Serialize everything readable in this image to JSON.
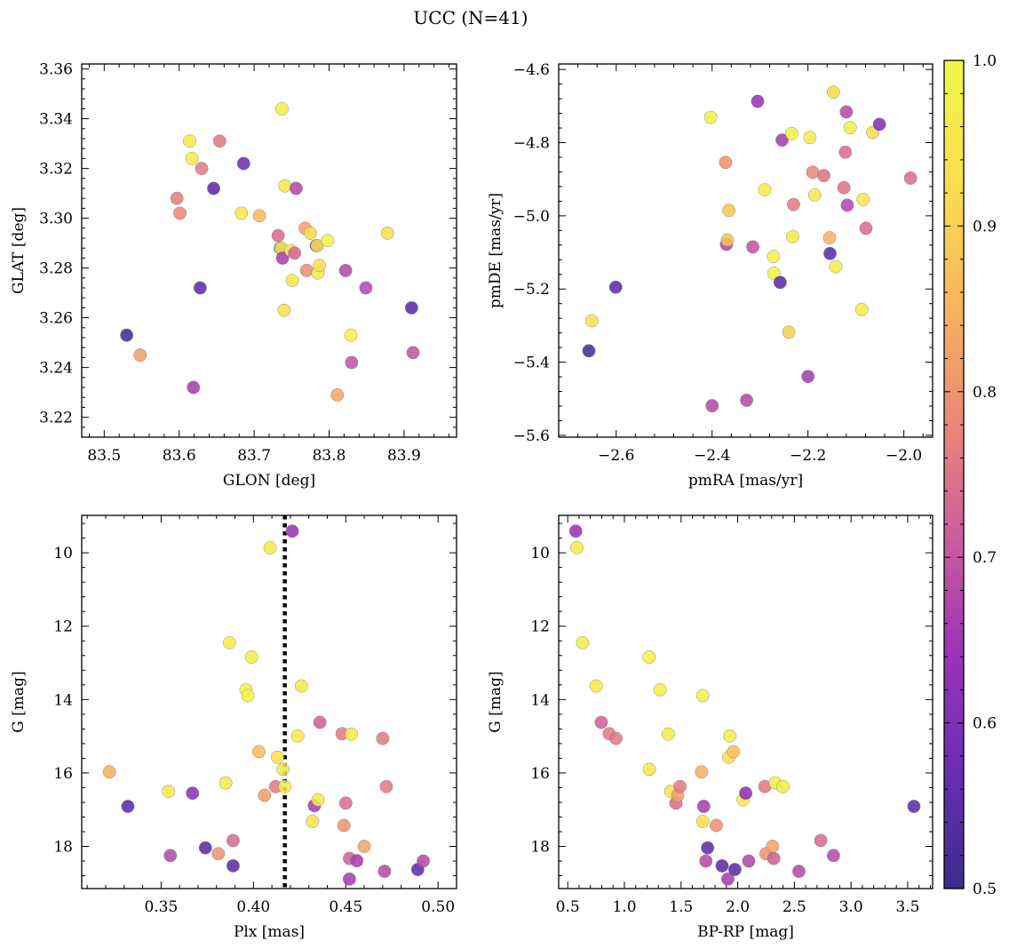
{
  "figure": {
    "title": "UCC (N=41)"
  },
  "colorbar": {
    "range": [
      0.5,
      1.0
    ],
    "tick_labels": [
      "0.5",
      "0.6",
      "0.7",
      "0.8",
      "0.9",
      "1.0"
    ],
    "colormap": "plasma",
    "stops": [
      "#3b2b8e",
      "#6a2fb0",
      "#9c33b8",
      "#cd5f9a",
      "#ec8a77",
      "#f7b75e",
      "#f9e04e",
      "#eef74a"
    ]
  },
  "chart_data": [
    {
      "type": "scatter",
      "xlabel": "GLON [deg]",
      "ylabel": "GLAT [deg]",
      "xlim": [
        83.47,
        83.97
      ],
      "ylim": [
        3.212,
        3.362
      ],
      "xticks": [
        83.5,
        83.6,
        83.7,
        83.8,
        83.9
      ],
      "xtick_labels": [
        "83.5",
        "83.6",
        "83.7",
        "83.8",
        "83.9"
      ],
      "yticks": [
        3.22,
        3.24,
        3.26,
        3.28,
        3.3,
        3.32,
        3.34,
        3.36
      ],
      "ytick_labels": [
        "3.22",
        "3.24",
        "3.26",
        "3.28",
        "3.30",
        "3.32",
        "3.34",
        "3.36"
      ],
      "points": [
        {
          "x": 83.53,
          "y": 3.253,
          "c": 0.52
        },
        {
          "x": 83.548,
          "y": 3.245,
          "c": 0.82
        },
        {
          "x": 83.597,
          "y": 3.308,
          "c": 0.77
        },
        {
          "x": 83.601,
          "y": 3.302,
          "c": 0.78
        },
        {
          "x": 83.614,
          "y": 3.331,
          "c": 0.96
        },
        {
          "x": 83.617,
          "y": 3.324,
          "c": 0.97
        },
        {
          "x": 83.619,
          "y": 3.232,
          "c": 0.66
        },
        {
          "x": 83.628,
          "y": 3.272,
          "c": 0.55
        },
        {
          "x": 83.63,
          "y": 3.32,
          "c": 0.76
        },
        {
          "x": 83.646,
          "y": 3.312,
          "c": 0.55
        },
        {
          "x": 83.654,
          "y": 3.331,
          "c": 0.76
        },
        {
          "x": 83.683,
          "y": 3.302,
          "c": 0.96
        },
        {
          "x": 83.686,
          "y": 3.322,
          "c": 0.58
        },
        {
          "x": 83.707,
          "y": 3.301,
          "c": 0.86
        },
        {
          "x": 83.732,
          "y": 3.293,
          "c": 0.74
        },
        {
          "x": 83.735,
          "y": 3.288,
          "c": 0.55
        },
        {
          "x": 83.736,
          "y": 3.288,
          "c": 0.97
        },
        {
          "x": 83.737,
          "y": 3.344,
          "c": 0.98
        },
        {
          "x": 83.738,
          "y": 3.284,
          "c": 0.66
        },
        {
          "x": 83.74,
          "y": 3.263,
          "c": 0.94
        },
        {
          "x": 83.741,
          "y": 3.313,
          "c": 0.96
        },
        {
          "x": 83.749,
          "y": 3.287,
          "c": 0.95
        },
        {
          "x": 83.751,
          "y": 3.275,
          "c": 0.95
        },
        {
          "x": 83.754,
          "y": 3.286,
          "c": 0.73
        },
        {
          "x": 83.756,
          "y": 3.312,
          "c": 0.68
        },
        {
          "x": 83.768,
          "y": 3.296,
          "c": 0.82
        },
        {
          "x": 83.77,
          "y": 3.279,
          "c": 0.79
        },
        {
          "x": 83.775,
          "y": 3.294,
          "c": 0.92
        },
        {
          "x": 83.783,
          "y": 3.289,
          "c": 0.58
        },
        {
          "x": 83.784,
          "y": 3.289,
          "c": 0.92
        },
        {
          "x": 83.785,
          "y": 3.278,
          "c": 0.97
        },
        {
          "x": 83.787,
          "y": 3.281,
          "c": 0.93
        },
        {
          "x": 83.798,
          "y": 3.291,
          "c": 0.98
        },
        {
          "x": 83.811,
          "y": 3.229,
          "c": 0.83
        },
        {
          "x": 83.822,
          "y": 3.279,
          "c": 0.68
        },
        {
          "x": 83.829,
          "y": 3.253,
          "c": 0.98
        },
        {
          "x": 83.83,
          "y": 3.242,
          "c": 0.7
        },
        {
          "x": 83.849,
          "y": 3.272,
          "c": 0.68
        },
        {
          "x": 83.878,
          "y": 3.294,
          "c": 0.92
        },
        {
          "x": 83.91,
          "y": 3.264,
          "c": 0.55
        },
        {
          "x": 83.912,
          "y": 3.246,
          "c": 0.7
        }
      ]
    },
    {
      "type": "scatter",
      "xlabel": "pmRA [mas/yr]",
      "ylabel": "pmDE [mas/yr]",
      "xlim": [
        -2.72,
        -1.94
      ],
      "ylim": [
        -5.605,
        -4.585
      ],
      "xticks": [
        -2.6,
        -2.4,
        -2.2,
        -2.0
      ],
      "xtick_labels": [
        "−2.6",
        "−2.4",
        "−2.2",
        "−2.0"
      ],
      "yticks": [
        -5.6,
        -5.4,
        -5.2,
        -5.0,
        -4.8,
        -4.6
      ],
      "ytick_labels": [
        "−5.6",
        "−5.4",
        "−5.2",
        "−5.0",
        "−4.8",
        "−4.6"
      ],
      "points": [
        {
          "x": -2.657,
          "y": -5.369,
          "c": 0.52
        },
        {
          "x": -2.651,
          "y": -5.287,
          "c": 0.93
        },
        {
          "x": -2.601,
          "y": -5.195,
          "c": 0.55
        },
        {
          "x": -2.403,
          "y": -4.731,
          "c": 0.98
        },
        {
          "x": -2.4,
          "y": -5.519,
          "c": 0.68
        },
        {
          "x": -2.372,
          "y": -4.854,
          "c": 0.8
        },
        {
          "x": -2.37,
          "y": -5.078,
          "c": 0.68
        },
        {
          "x": -2.368,
          "y": -5.066,
          "c": 0.88
        },
        {
          "x": -2.365,
          "y": -4.985,
          "c": 0.88
        },
        {
          "x": -2.328,
          "y": -5.504,
          "c": 0.68
        },
        {
          "x": -2.315,
          "y": -5.085,
          "c": 0.7
        },
        {
          "x": -2.305,
          "y": -4.687,
          "c": 0.64
        },
        {
          "x": -2.29,
          "y": -4.929,
          "c": 0.97
        },
        {
          "x": -2.272,
          "y": -5.111,
          "c": 0.98
        },
        {
          "x": -2.271,
          "y": -5.157,
          "c": 0.98
        },
        {
          "x": -2.258,
          "y": -5.182,
          "c": 0.55
        },
        {
          "x": -2.254,
          "y": -4.793,
          "c": 0.66
        },
        {
          "x": -2.24,
          "y": -5.318,
          "c": 0.9
        },
        {
          "x": -2.234,
          "y": -4.775,
          "c": 0.98
        },
        {
          "x": -2.232,
          "y": -5.057,
          "c": 0.97
        },
        {
          "x": -2.23,
          "y": -4.969,
          "c": 0.76
        },
        {
          "x": -2.2,
          "y": -5.439,
          "c": 0.66
        },
        {
          "x": -2.196,
          "y": -4.786,
          "c": 0.96
        },
        {
          "x": -2.19,
          "y": -4.881,
          "c": 0.78
        },
        {
          "x": -2.186,
          "y": -4.943,
          "c": 0.97
        },
        {
          "x": -2.167,
          "y": -4.89,
          "c": 0.75
        },
        {
          "x": -2.155,
          "y": -5.06,
          "c": 0.85
        },
        {
          "x": -2.154,
          "y": -5.103,
          "c": 0.55
        },
        {
          "x": -2.147,
          "y": -4.662,
          "c": 0.92
        },
        {
          "x": -2.142,
          "y": -5.139,
          "c": 0.97
        },
        {
          "x": -2.125,
          "y": -4.923,
          "c": 0.75
        },
        {
          "x": -2.122,
          "y": -4.826,
          "c": 0.74
        },
        {
          "x": -2.12,
          "y": -4.716,
          "c": 0.68
        },
        {
          "x": -2.118,
          "y": -4.971,
          "c": 0.68
        },
        {
          "x": -2.112,
          "y": -4.759,
          "c": 0.98
        },
        {
          "x": -2.088,
          "y": -5.256,
          "c": 0.96
        },
        {
          "x": -2.085,
          "y": -4.955,
          "c": 0.96
        },
        {
          "x": -2.079,
          "y": -5.034,
          "c": 0.74
        },
        {
          "x": -2.065,
          "y": -4.772,
          "c": 0.92
        },
        {
          "x": -2.051,
          "y": -4.75,
          "c": 0.6
        },
        {
          "x": -1.986,
          "y": -4.897,
          "c": 0.74
        }
      ]
    },
    {
      "type": "scatter",
      "xlabel": "Plx [mas]",
      "ylabel": "G [mag]",
      "xlim": [
        0.307,
        0.51
      ],
      "ylim": [
        19.15,
        8.98
      ],
      "y_inverted": true,
      "xticks": [
        0.35,
        0.4,
        0.45,
        0.5
      ],
      "xtick_labels": [
        "0.35",
        "0.40",
        "0.45",
        "0.50"
      ],
      "yticks": [
        10,
        12,
        14,
        16,
        18
      ],
      "ytick_labels": [
        "10",
        "12",
        "14",
        "16",
        "18"
      ],
      "reference_line": {
        "x": 0.417,
        "style": "dotted"
      },
      "points": [
        {
          "x": 0.322,
          "y": 15.97,
          "c": 0.85
        },
        {
          "x": 0.332,
          "y": 16.91,
          "c": 0.55
        },
        {
          "x": 0.354,
          "y": 16.5,
          "c": 0.94
        },
        {
          "x": 0.355,
          "y": 18.25,
          "c": 0.68
        },
        {
          "x": 0.367,
          "y": 16.55,
          "c": 0.62
        },
        {
          "x": 0.374,
          "y": 18.04,
          "c": 0.55
        },
        {
          "x": 0.381,
          "y": 18.2,
          "c": 0.8
        },
        {
          "x": 0.385,
          "y": 16.27,
          "c": 0.97
        },
        {
          "x": 0.387,
          "y": 12.45,
          "c": 0.97
        },
        {
          "x": 0.389,
          "y": 17.84,
          "c": 0.74
        },
        {
          "x": 0.389,
          "y": 18.53,
          "c": 0.55
        },
        {
          "x": 0.396,
          "y": 13.73,
          "c": 0.98
        },
        {
          "x": 0.397,
          "y": 13.89,
          "c": 0.98
        },
        {
          "x": 0.399,
          "y": 12.84,
          "c": 0.98
        },
        {
          "x": 0.403,
          "y": 15.42,
          "c": 0.87
        },
        {
          "x": 0.406,
          "y": 16.61,
          "c": 0.82
        },
        {
          "x": 0.409,
          "y": 9.86,
          "c": 0.97
        },
        {
          "x": 0.412,
          "y": 16.37,
          "c": 0.76
        },
        {
          "x": 0.413,
          "y": 15.57,
          "c": 0.93
        },
        {
          "x": 0.416,
          "y": 15.9,
          "c": 0.95
        },
        {
          "x": 0.417,
          "y": 16.37,
          "c": 0.97
        },
        {
          "x": 0.421,
          "y": 9.41,
          "c": 0.64
        },
        {
          "x": 0.424,
          "y": 14.99,
          "c": 0.97
        },
        {
          "x": 0.426,
          "y": 13.63,
          "c": 0.97
        },
        {
          "x": 0.432,
          "y": 17.32,
          "c": 0.93
        },
        {
          "x": 0.433,
          "y": 16.89,
          "c": 0.66
        },
        {
          "x": 0.435,
          "y": 16.73,
          "c": 0.97
        },
        {
          "x": 0.436,
          "y": 14.62,
          "c": 0.72
        },
        {
          "x": 0.448,
          "y": 14.93,
          "c": 0.76
        },
        {
          "x": 0.449,
          "y": 17.43,
          "c": 0.8
        },
        {
          "x": 0.45,
          "y": 16.82,
          "c": 0.74
        },
        {
          "x": 0.452,
          "y": 18.33,
          "c": 0.72
        },
        {
          "x": 0.452,
          "y": 18.89,
          "c": 0.66
        },
        {
          "x": 0.453,
          "y": 14.94,
          "c": 0.97
        },
        {
          "x": 0.456,
          "y": 18.39,
          "c": 0.66
        },
        {
          "x": 0.46,
          "y": 18.0,
          "c": 0.83
        },
        {
          "x": 0.47,
          "y": 15.06,
          "c": 0.76
        },
        {
          "x": 0.471,
          "y": 18.68,
          "c": 0.68
        },
        {
          "x": 0.472,
          "y": 16.37,
          "c": 0.76
        },
        {
          "x": 0.489,
          "y": 18.63,
          "c": 0.55
        },
        {
          "x": 0.492,
          "y": 18.4,
          "c": 0.68
        }
      ]
    },
    {
      "type": "scatter",
      "xlabel": "BP-RP [mag]",
      "ylabel": "G [mag]",
      "xlim": [
        0.42,
        3.72
      ],
      "ylim": [
        19.15,
        8.98
      ],
      "y_inverted": true,
      "xticks": [
        0.5,
        1.0,
        1.5,
        2.0,
        2.5,
        3.0,
        3.5
      ],
      "xtick_labels": [
        "0.5",
        "1.0",
        "1.5",
        "2.0",
        "2.5",
        "3.0",
        "3.5"
      ],
      "yticks": [
        10,
        12,
        14,
        16,
        18
      ],
      "ytick_labels": [
        "10",
        "12",
        "14",
        "16",
        "18"
      ],
      "points": [
        {
          "x": 0.571,
          "y": 9.41,
          "c": 0.64
        },
        {
          "x": 0.581,
          "y": 9.86,
          "c": 0.97
        },
        {
          "x": 0.631,
          "y": 12.45,
          "c": 0.97
        },
        {
          "x": 0.751,
          "y": 13.63,
          "c": 0.97
        },
        {
          "x": 0.796,
          "y": 14.62,
          "c": 0.72
        },
        {
          "x": 0.866,
          "y": 14.93,
          "c": 0.76
        },
        {
          "x": 0.926,
          "y": 15.06,
          "c": 0.76
        },
        {
          "x": 1.218,
          "y": 12.84,
          "c": 0.98
        },
        {
          "x": 1.22,
          "y": 15.9,
          "c": 0.95
        },
        {
          "x": 1.315,
          "y": 13.73,
          "c": 0.98
        },
        {
          "x": 1.387,
          "y": 14.94,
          "c": 0.97
        },
        {
          "x": 1.408,
          "y": 16.5,
          "c": 0.94
        },
        {
          "x": 1.455,
          "y": 16.82,
          "c": 0.74
        },
        {
          "x": 1.47,
          "y": 16.61,
          "c": 0.82
        },
        {
          "x": 1.49,
          "y": 16.37,
          "c": 0.76
        },
        {
          "x": 1.681,
          "y": 15.97,
          "c": 0.85
        },
        {
          "x": 1.691,
          "y": 13.89,
          "c": 0.98
        },
        {
          "x": 1.692,
          "y": 17.32,
          "c": 0.93
        },
        {
          "x": 1.7,
          "y": 16.91,
          "c": 0.66
        },
        {
          "x": 1.719,
          "y": 18.4,
          "c": 0.68
        },
        {
          "x": 1.734,
          "y": 18.04,
          "c": 0.55
        },
        {
          "x": 1.811,
          "y": 17.43,
          "c": 0.8
        },
        {
          "x": 1.862,
          "y": 18.53,
          "c": 0.55
        },
        {
          "x": 1.913,
          "y": 18.89,
          "c": 0.66
        },
        {
          "x": 1.921,
          "y": 15.57,
          "c": 0.93
        },
        {
          "x": 1.931,
          "y": 14.99,
          "c": 0.97
        },
        {
          "x": 1.961,
          "y": 15.42,
          "c": 0.87
        },
        {
          "x": 1.975,
          "y": 18.63,
          "c": 0.55
        },
        {
          "x": 2.048,
          "y": 16.73,
          "c": 0.97
        },
        {
          "x": 2.071,
          "y": 16.55,
          "c": 0.62
        },
        {
          "x": 2.097,
          "y": 18.4,
          "c": 0.68
        },
        {
          "x": 2.239,
          "y": 16.37,
          "c": 0.76
        },
        {
          "x": 2.25,
          "y": 18.2,
          "c": 0.8
        },
        {
          "x": 2.307,
          "y": 18.0,
          "c": 0.83
        },
        {
          "x": 2.318,
          "y": 18.33,
          "c": 0.72
        },
        {
          "x": 2.331,
          "y": 16.27,
          "c": 0.97
        },
        {
          "x": 2.399,
          "y": 16.37,
          "c": 0.97
        },
        {
          "x": 2.54,
          "y": 18.68,
          "c": 0.68
        },
        {
          "x": 2.733,
          "y": 17.84,
          "c": 0.74
        },
        {
          "x": 2.845,
          "y": 18.25,
          "c": 0.68
        },
        {
          "x": 3.555,
          "y": 16.91,
          "c": 0.55
        }
      ]
    }
  ]
}
